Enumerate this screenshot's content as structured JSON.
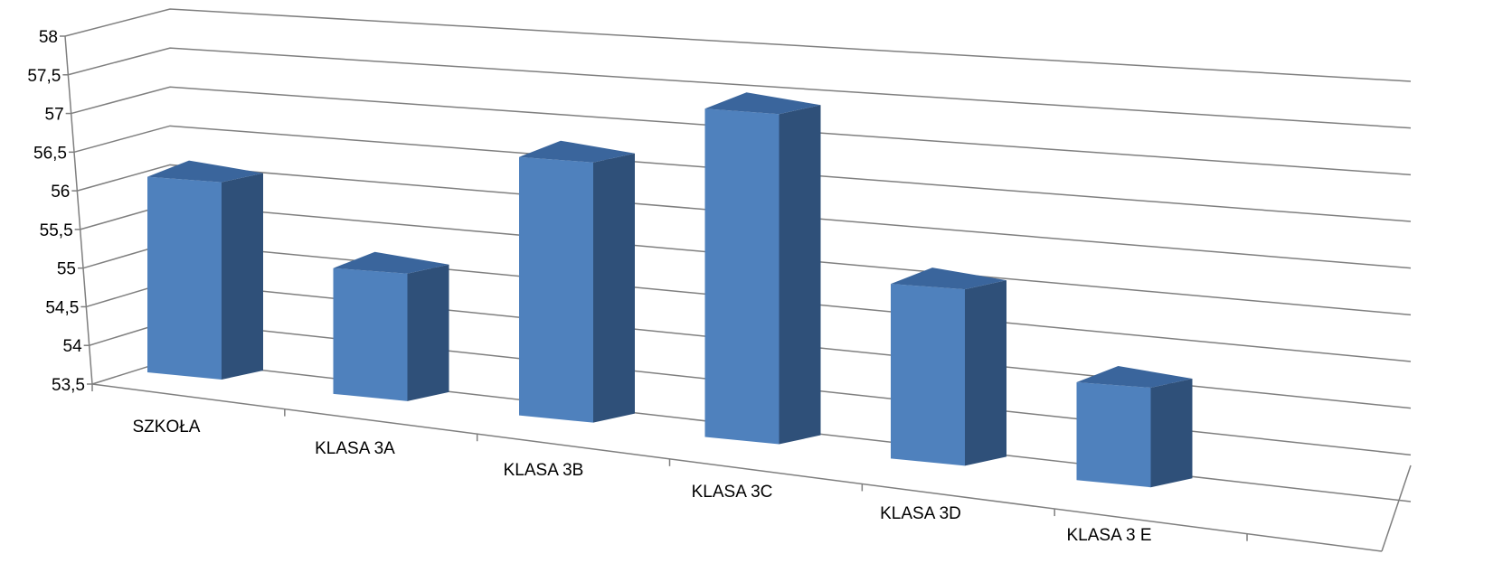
{
  "chart_data": {
    "type": "bar",
    "style": "3d-column",
    "categories": [
      "SZKOŁA",
      "KLASA 3A",
      "KLASA 3B",
      "KLASA 3C",
      "KLASA 3D",
      "KLASA 3 E"
    ],
    "series": [
      {
        "values": [
          56.3,
          55.3,
          57.2,
          58.2,
          56.0,
          54.9
        ]
      }
    ],
    "yticks": [
      "53,5",
      "54",
      "54,5",
      "55",
      "55,5",
      "56",
      "56,5",
      "57",
      "57,5",
      "58"
    ],
    "ylim": [
      53.5,
      58
    ],
    "ytick_step": 0.5,
    "grid": true,
    "legend": "none",
    "colors": {
      "bar_front": "#4f81bd",
      "bar_side": "#2f5079",
      "bar_top": "#3a659c",
      "grid": "#7f7f7f"
    }
  }
}
